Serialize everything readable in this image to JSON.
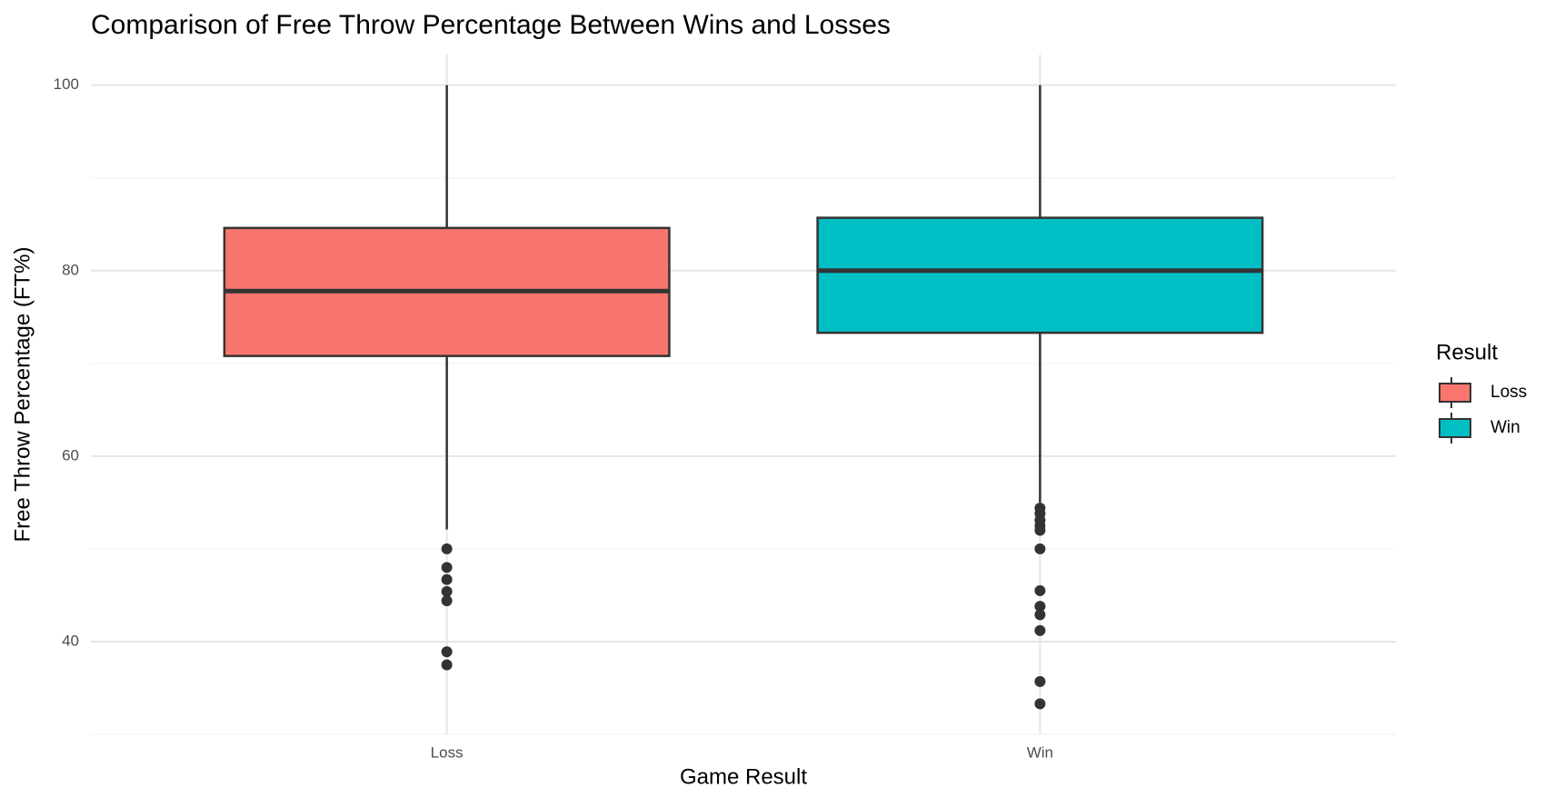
{
  "chart_data": {
    "type": "box",
    "title": "Comparison of Free Throw Percentage Between Wins and Losses",
    "x_label": "Game Result",
    "y_label": "Free Throw Percentage (FT%)",
    "legend_title": "Result",
    "legend_position": "right",
    "categories": [
      "Loss",
      "Win"
    ],
    "series": [
      {
        "name": "Loss",
        "color": "#F8766D",
        "whisker_low": 52.1,
        "q1": 70.8,
        "median": 77.8,
        "q3": 84.6,
        "whisker_high": 100,
        "outliers": [
          50,
          48,
          46.7,
          45.4,
          44.4,
          38.9,
          37.5
        ]
      },
      {
        "name": "Win",
        "color": "#00BFC4",
        "whisker_low": 55.0,
        "q1": 73.3,
        "median": 80,
        "q3": 85.7,
        "whisker_high": 100,
        "outliers": [
          54.4,
          53.8,
          53.1,
          52.5,
          52,
          50,
          45.5,
          43.8,
          42.9,
          41.2,
          35.7,
          33.3
        ]
      }
    ],
    "ylim": [
      30,
      103.3
    ],
    "yticks": [
      40,
      60,
      80,
      100
    ],
    "minor_yticks": [
      30,
      50,
      70,
      90
    ],
    "grid": true
  }
}
